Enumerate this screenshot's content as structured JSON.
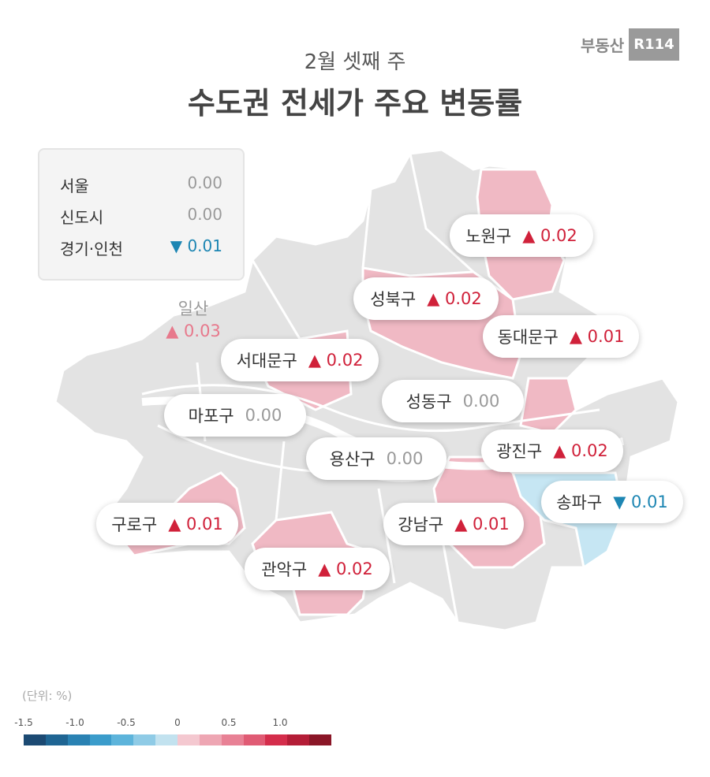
{
  "header": {
    "subtitle": "2월 셋째 주",
    "title": "수도권 전세가 주요 변동률"
  },
  "logo": {
    "text": "부동산",
    "badge": "R114"
  },
  "summary": {
    "rows": [
      {
        "label": "서울",
        "value": "0.00",
        "color": "#9a9a9a"
      },
      {
        "label": "신도시",
        "value": "0.00",
        "color": "#9a9a9a"
      },
      {
        "label": "경기·인천",
        "value": "▼ 0.01",
        "color": "#1d86b3"
      }
    ]
  },
  "ilsan": {
    "name": "일산",
    "change": "▲ 0.03",
    "color": "#e7798c"
  },
  "districts": [
    {
      "name": "노원구",
      "change": "▲ 0.02",
      "color": "#d0213a"
    },
    {
      "name": "성북구",
      "change": "▲ 0.02",
      "color": "#d0213a"
    },
    {
      "name": "동대문구",
      "change": "▲ 0.01",
      "color": "#d0213a"
    },
    {
      "name": "서대문구",
      "change": "▲ 0.02",
      "color": "#d0213a"
    },
    {
      "name": "마포구",
      "change": "0.00",
      "color": "#9a9a9a"
    },
    {
      "name": "성동구",
      "change": "0.00",
      "color": "#9a9a9a"
    },
    {
      "name": "용산구",
      "change": "0.00",
      "color": "#9a9a9a"
    },
    {
      "name": "광진구",
      "change": "▲ 0.02",
      "color": "#d0213a"
    },
    {
      "name": "송파구",
      "change": "▼ 0.01",
      "color": "#1d86b3"
    },
    {
      "name": "구로구",
      "change": "▲ 0.01",
      "color": "#d0213a"
    },
    {
      "name": "강남구",
      "change": "▲ 0.01",
      "color": "#d0213a"
    },
    {
      "name": "관악구",
      "change": "▲ 0.02",
      "color": "#d0213a"
    }
  ],
  "legend": {
    "unit": "(단위: %)",
    "ticks": [
      "-1.5",
      "-1.0",
      "-0.5",
      "0",
      "0.5",
      "1.0"
    ],
    "colors": [
      "#1c4a73",
      "#1f6593",
      "#2a82b3",
      "#3b9ccb",
      "#5db4db",
      "#8fcbe6",
      "#c2e2ef",
      "#f4c8d0",
      "#eea6b3",
      "#e88195",
      "#e05b74",
      "#d42d4b",
      "#b41d37",
      "#8a1627"
    ]
  }
}
